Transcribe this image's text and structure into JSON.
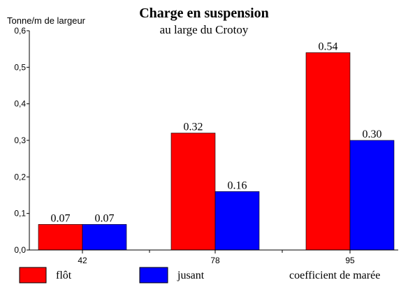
{
  "chart_data": {
    "type": "bar",
    "title": "Charge en suspension",
    "subtitle": "au large du Crotoy",
    "ylabel": "Tonne/m de largeur",
    "xlabel": "coefficient de marée",
    "categories": [
      "42",
      "78",
      "95"
    ],
    "series": [
      {
        "name": "flôt",
        "values": [
          0.07,
          0.32,
          0.54
        ],
        "labels": [
          "0.07",
          "0.32",
          "0.54"
        ],
        "color": "#ff0000"
      },
      {
        "name": "jusant",
        "values": [
          0.07,
          0.16,
          0.3
        ],
        "labels": [
          "0.07",
          "0.16",
          "0.30"
        ],
        "color": "#0000ff"
      }
    ],
    "ylim": [
      0,
      0.6
    ],
    "yticks": [
      "0,0",
      "0,1",
      "0,2",
      "0,3",
      "0,4",
      "0,5",
      "0,6"
    ],
    "grid": false,
    "legend_position": "bottom-left"
  }
}
